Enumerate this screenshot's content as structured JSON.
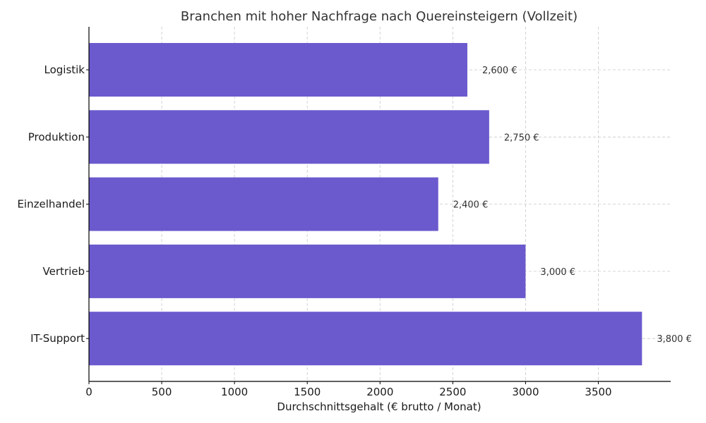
{
  "chart_data": {
    "type": "bar",
    "orientation": "horizontal",
    "title": "Branchen mit hoher Nachfrage nach Quereinsteigern (Vollzeit)",
    "xlabel": "Durchschnittsgehalt (€ brutto / Monat)",
    "ylabel": "",
    "categories": [
      "Logistik",
      "Produktion",
      "Einzelhandel",
      "Vertrieb",
      "IT-Support"
    ],
    "values": [
      2600,
      2750,
      2400,
      3000,
      3800
    ],
    "data_labels": [
      "2,600 €",
      "2,750 €",
      "2,400 €",
      "3,000 €",
      "3,800 €"
    ],
    "xlim": [
      0,
      4000
    ],
    "xticks": [
      0,
      500,
      1000,
      1500,
      2000,
      2500,
      3000,
      3500
    ],
    "xtick_labels": [
      "0",
      "500",
      "1000",
      "1500",
      "2000",
      "2500",
      "3000",
      "3500"
    ],
    "grid": true,
    "bar_color": "#6a5acd"
  }
}
